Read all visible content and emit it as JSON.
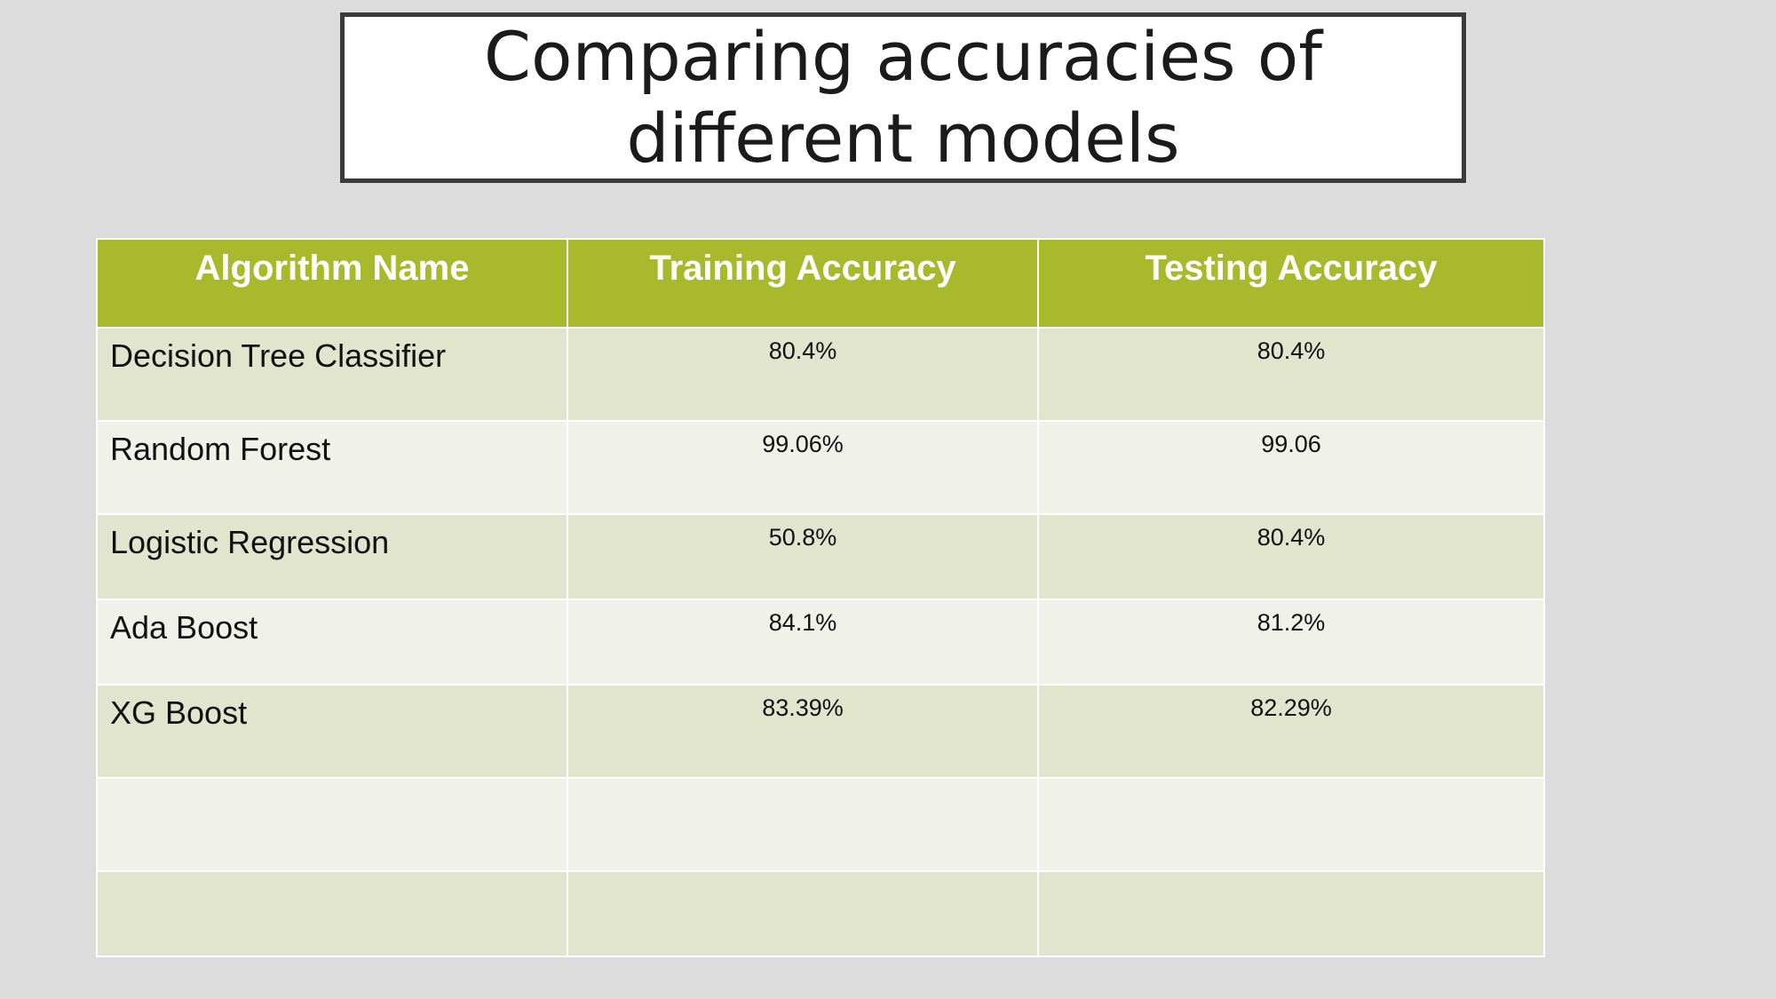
{
  "slide": {
    "title": "Comparing accuracies of different models"
  },
  "table": {
    "headers": [
      "Algorithm Name",
      "Training Accuracy",
      "Testing Accuracy"
    ],
    "rows": [
      [
        "Decision Tree Classifier",
        "80.4%",
        "80.4%"
      ],
      [
        "Random Forest",
        "99.06%",
        "99.06"
      ],
      [
        "Logistic Regression",
        "50.8%",
        "80.4%"
      ],
      [
        "Ada Boost",
        "84.1%",
        "81.2%"
      ],
      [
        "XG Boost",
        "83.39%",
        "82.29%"
      ],
      [
        "",
        "",
        ""
      ],
      [
        "",
        "",
        ""
      ]
    ]
  },
  "colors": {
    "background": "#dcdcdc",
    "header": "#a8b92b",
    "row_odd": "#e1e5cd",
    "row_even": "#f0f1e9"
  }
}
